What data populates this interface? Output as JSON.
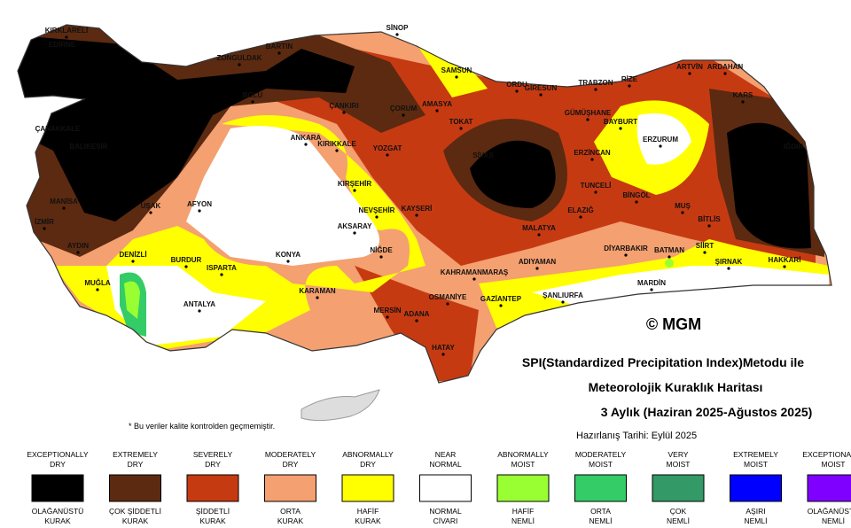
{
  "map": {
    "cities": [
      "KIRKLARELİ",
      "EDİRNE",
      "BARTIN",
      "ZONGULDAK",
      "SİNOP",
      "SAMSUN",
      "ORDU",
      "GİRESUN",
      "TRABZON",
      "RİZE",
      "ARTVİN",
      "ARDAHAN",
      "KARS",
      "IĞDIR",
      "ERZURUM",
      "BAYBURT",
      "GÜMÜŞHANE",
      "TOKAT",
      "ÇORUM",
      "AMASYA",
      "ÇANKIRI",
      "BOLU",
      "ANKARA",
      "KIRIKKALE",
      "YOZGAT",
      "SİVAS",
      "ERZİNCAN",
      "TUNCELİ",
      "BİNGÖL",
      "MUŞ",
      "ELAZIĞ",
      "MALATYA",
      "BİTLİS",
      "SİİRT",
      "BATMAN",
      "ŞIRNAK",
      "HAKKARİ",
      "DİYARBAKIR",
      "MARDİN",
      "ŞANLIURFA",
      "ADIYAMAN",
      "GAZİANTEP",
      "KAHRAMANMARAŞ",
      "OSMANİYE",
      "ADANA",
      "MERSİN",
      "HATAY",
      "KARAMAN",
      "KONYA",
      "NİĞDE",
      "AKSARAY",
      "NEVŞEHİR",
      "KAYSERİ",
      "KIRŞEHİR",
      "AFYON",
      "UŞAK",
      "DENİZLİ",
      "BURDUR",
      "ISPARTA",
      "ANTALYA",
      "MUĞLA",
      "AYDIN",
      "İZMİR",
      "MANİSA",
      "BALIKESİR",
      "ÇANAKKALE"
    ],
    "copyright": "© MGM",
    "note": "* Bu veriler kalite kontrolden geçmemiştir."
  },
  "title": {
    "lines": [
      "SPI(Standardized Precipitation Index)Metodu ile",
      "Meteorolojik Kuraklık Haritası",
      "3 Aylık (Haziran 2025-Ağustos 2025)"
    ],
    "date": "Hazırlanış Tarihi: Eylül 2025"
  },
  "legend": [
    {
      "top": [
        "EXCEPTIONALLY",
        "DRY"
      ],
      "bottom": [
        "OLAĞANÜSTÜ",
        "KURAK"
      ],
      "color": "#000000"
    },
    {
      "top": [
        "EXTREMELY",
        "DRY"
      ],
      "bottom": [
        "ÇOK ŞİDDETLİ",
        "KURAK"
      ],
      "color": "#5c2a10"
    },
    {
      "top": [
        "SEVERELY",
        "DRY"
      ],
      "bottom": [
        "ŞİDDETLİ",
        "KURAK"
      ],
      "color": "#c63a12"
    },
    {
      "top": [
        "MODERATELY",
        "DRY"
      ],
      "bottom": [
        "ORTA",
        "KURAK"
      ],
      "color": "#f4a070"
    },
    {
      "top": [
        "ABNORMALLY",
        "DRY"
      ],
      "bottom": [
        "HAFİF",
        "KURAK"
      ],
      "color": "#ffff00"
    },
    {
      "top": [
        "NEAR",
        "NORMAL"
      ],
      "bottom": [
        "NORMAL",
        "CİVARI"
      ],
      "color": "#ffffff"
    },
    {
      "top": [
        "ABNORMALLY",
        "MOIST"
      ],
      "bottom": [
        "HAFİF",
        "NEMLİ"
      ],
      "color": "#99ff33"
    },
    {
      "top": [
        "MODERATELY",
        "MOIST"
      ],
      "bottom": [
        "ORTA",
        "NEMLİ"
      ],
      "color": "#33cc66"
    },
    {
      "top": [
        "VERY",
        "MOIST"
      ],
      "bottom": [
        "ÇOK",
        "NEMLİ"
      ],
      "color": "#339966"
    },
    {
      "top": [
        "EXTREMELY",
        "MOIST"
      ],
      "bottom": [
        "AŞIRI",
        "NEMLİ"
      ],
      "color": "#0000ff"
    },
    {
      "top": [
        "EXCEPTIONALLY",
        "MOIST"
      ],
      "bottom": [
        "OLAĞANÜSTÜ",
        "NEMLİ"
      ],
      "color": "#8000ff"
    }
  ]
}
